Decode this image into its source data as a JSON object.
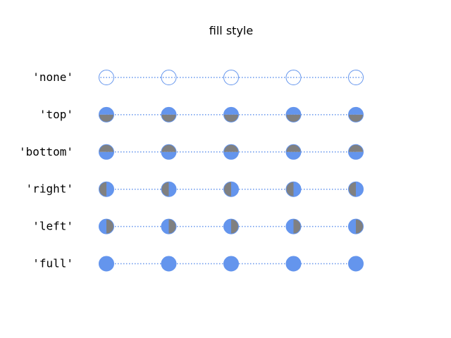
{
  "chart_data": {
    "type": "scatter",
    "title": "fill style",
    "xlabel": "",
    "ylabel": "",
    "grid": false,
    "axes_visible": false,
    "x": [
      0,
      1,
      2,
      3,
      4
    ],
    "rows": [
      {
        "label": "'none'",
        "fillstyle": "none"
      },
      {
        "label": "'top'",
        "fillstyle": "top"
      },
      {
        "label": "'bottom'",
        "fillstyle": "bottom"
      },
      {
        "label": "'right'",
        "fillstyle": "right"
      },
      {
        "label": "'left'",
        "fillstyle": "left"
      },
      {
        "label": "'full'",
        "fillstyle": "full"
      }
    ],
    "line_style": "dotted",
    "colors": {
      "marker": "#6495ed",
      "alt_fill": "#808080",
      "line": "#6495ed"
    }
  }
}
